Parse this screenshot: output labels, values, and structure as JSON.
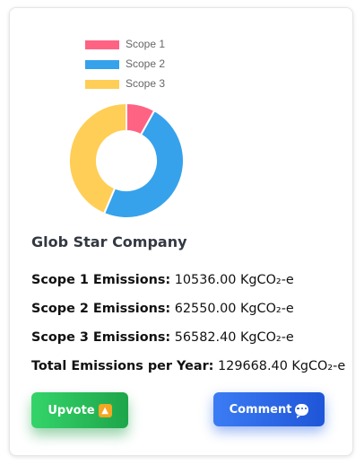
{
  "chart_data": {
    "type": "pie",
    "variant": "doughnut",
    "categories": [
      "Scope 1",
      "Scope 2",
      "Scope 3"
    ],
    "values": [
      10536.0,
      62550.0,
      56582.4
    ],
    "colors": [
      "#ff6384",
      "#36a2eb",
      "#ffce56"
    ],
    "legend_position": "top"
  },
  "company": {
    "name": "Glob Star Company"
  },
  "metrics": [
    {
      "label": "Scope 1 Emissions:",
      "value": "10536.00 KgCO₂-e"
    },
    {
      "label": "Scope 2 Emissions:",
      "value": "62550.00 KgCO₂-e"
    },
    {
      "label": "Scope 3 Emissions:",
      "value": "56582.40 KgCO₂-e"
    },
    {
      "label": "Total Emissions per Year:",
      "value": "129668.40 KgCO₂-e"
    }
  ],
  "buttons": {
    "upvote_label": "Upvote",
    "comment_label": "Comment",
    "upvote_icon": "up-arrow-icon",
    "comment_icon": "speech-bubble-icon"
  }
}
